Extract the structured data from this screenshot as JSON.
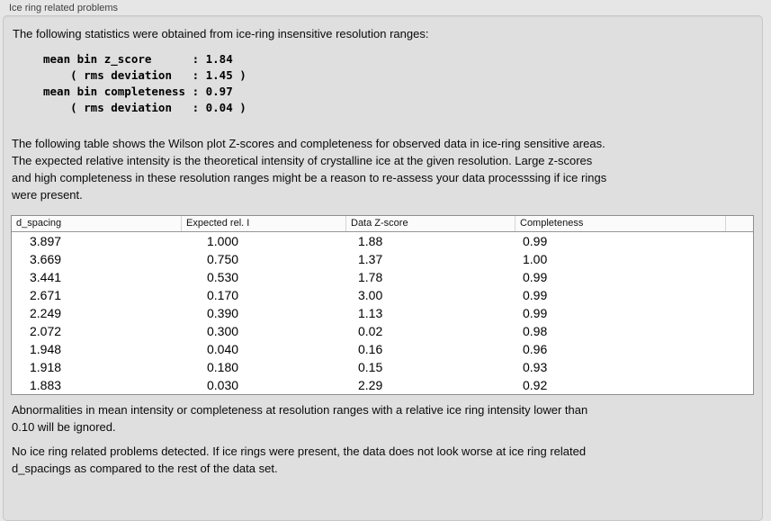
{
  "panel": {
    "title": "Ice ring related problems"
  },
  "intro": "The following statistics were obtained from ice-ring insensitive resolution ranges:",
  "stats_block": "mean bin z_score      : 1.84\n    ( rms deviation   : 1.45 )\nmean bin completeness : 0.97\n    ( rms deviation   : 0.04 )",
  "table_intro": "The following table shows the Wilson plot Z-scores and completeness for observed data in ice-ring sensitive areas.\nThe expected relative intensity is the theoretical intensity of crystalline ice at the given resolution. Large z-scores\nand high completeness in these resolution ranges might be a reason to re-assess your data processsing if ice rings\nwere present.",
  "table": {
    "columns": [
      "d_spacing",
      "Expected rel. I",
      "Data Z-score",
      "Completeness"
    ],
    "rows": [
      [
        "3.897",
        "1.000",
        "1.88",
        "0.99"
      ],
      [
        "3.669",
        "0.750",
        "1.37",
        "1.00"
      ],
      [
        "3.441",
        "0.530",
        "1.78",
        "0.99"
      ],
      [
        "2.671",
        "0.170",
        "3.00",
        "0.99"
      ],
      [
        "2.249",
        "0.390",
        "1.13",
        "0.99"
      ],
      [
        "2.072",
        "0.300",
        "0.02",
        "0.98"
      ],
      [
        "1.948",
        "0.040",
        "0.16",
        "0.96"
      ],
      [
        "1.918",
        "0.180",
        "0.15",
        "0.93"
      ],
      [
        "1.883",
        "0.030",
        "2.29",
        "0.92"
      ]
    ]
  },
  "note_ignore": "Abnormalities in mean intensity or completeness at resolution ranges with a relative ice ring intensity lower than\n0.10 will be ignored.",
  "note_result": "No ice ring related problems detected. If ice rings were present, the data does not look worse at ice ring related\nd_spacings as compared to the rest of the data set.",
  "colors": {
    "page_bg": "#e6e6e6",
    "box_bg": "#dfdfdf",
    "box_border": "#c7c7c7",
    "table_bg": "#ffffff",
    "table_border": "#8f8f8f",
    "header_bg": "#fbfbfb",
    "text": "#000000",
    "title_text": "#3f3f3f"
  }
}
